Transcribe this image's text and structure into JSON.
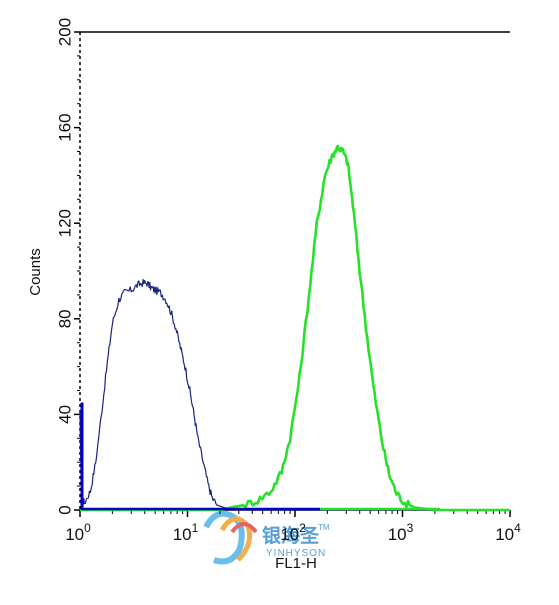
{
  "chart_data": {
    "type": "area",
    "title": "",
    "xlabel": "FL1-H",
    "ylabel": "Counts",
    "x_scale": "log",
    "xlim": [
      1,
      10000
    ],
    "ylim": [
      0,
      200
    ],
    "x_ticks": [
      {
        "base": "10",
        "exp": "0",
        "value": 1
      },
      {
        "base": "10",
        "exp": "1",
        "value": 10
      },
      {
        "base": "10",
        "exp": "2",
        "value": 100
      },
      {
        "base": "10",
        "exp": "3",
        "value": 1000
      },
      {
        "base": "10",
        "exp": "4",
        "value": 10000
      }
    ],
    "y_ticks": [
      "0",
      "40",
      "80",
      "120",
      "160",
      "200"
    ],
    "y_tick_values": [
      0,
      40,
      80,
      120,
      160,
      200
    ],
    "grid": false,
    "series": [
      {
        "color": "#1a237e",
        "fill": false,
        "points": [
          [
            1.0,
            40
          ],
          [
            1.03,
            5
          ],
          [
            1.1,
            3
          ],
          [
            1.25,
            8
          ],
          [
            1.4,
            20
          ],
          [
            1.6,
            42
          ],
          [
            1.8,
            62
          ],
          [
            2.0,
            78
          ],
          [
            2.3,
            88
          ],
          [
            2.6,
            91
          ],
          [
            3.0,
            92
          ],
          [
            3.4,
            94
          ],
          [
            3.8,
            95
          ],
          [
            4.2,
            95
          ],
          [
            4.6,
            93
          ],
          [
            5.0,
            92
          ],
          [
            5.6,
            91
          ],
          [
            6.3,
            88
          ],
          [
            7.0,
            83
          ],
          [
            7.8,
            76
          ],
          [
            8.6,
            68
          ],
          [
            9.5,
            60
          ],
          [
            10.5,
            50
          ],
          [
            11.5,
            40
          ],
          [
            12.5,
            30
          ],
          [
            14.0,
            20
          ],
          [
            15.5,
            11
          ],
          [
            17.0,
            5
          ],
          [
            19.0,
            2
          ],
          [
            22.0,
            1
          ],
          [
            26.0,
            0.5
          ],
          [
            35.0,
            0
          ],
          [
            60.0,
            0
          ],
          [
            1000,
            0
          ],
          [
            10000,
            0
          ]
        ]
      },
      {
        "color": "#29e029",
        "fill": false,
        "points": [
          [
            1.0,
            0
          ],
          [
            20,
            0
          ],
          [
            25,
            1
          ],
          [
            33,
            2
          ],
          [
            45,
            4
          ],
          [
            60,
            8
          ],
          [
            75,
            16
          ],
          [
            90,
            30
          ],
          [
            110,
            55
          ],
          [
            135,
            90
          ],
          [
            160,
            120
          ],
          [
            190,
            140
          ],
          [
            220,
            148
          ],
          [
            250,
            152
          ],
          [
            280,
            150
          ],
          [
            310,
            145
          ],
          [
            345,
            128
          ],
          [
            400,
            100
          ],
          [
            470,
            72
          ],
          [
            550,
            48
          ],
          [
            650,
            28
          ],
          [
            750,
            15
          ],
          [
            880,
            7
          ],
          [
            1050,
            3
          ],
          [
            1300,
            1
          ],
          [
            1700,
            0.4
          ],
          [
            2200,
            0
          ],
          [
            2400,
            0
          ],
          [
            10000,
            0
          ]
        ]
      }
    ],
    "baseline_marker": {
      "color": "#0000cc",
      "count": 45
    }
  },
  "watermark": {
    "text_cn": "银海圣",
    "text_en": "YINHYSON",
    "tm": "TM"
  }
}
